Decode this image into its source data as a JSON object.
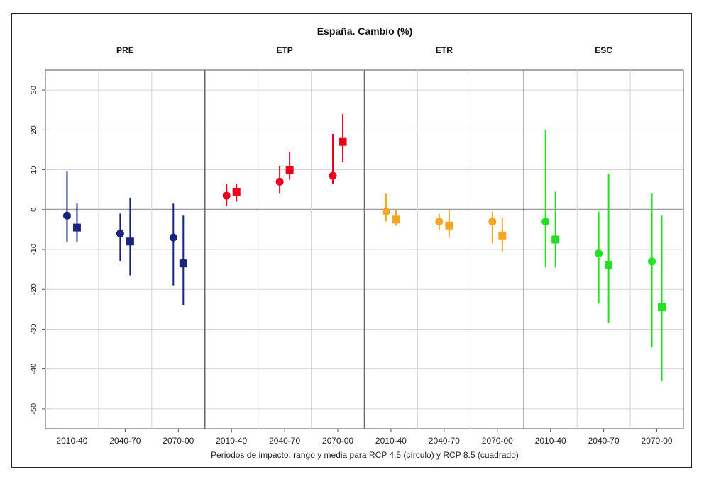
{
  "chart_data": {
    "type": "scatter",
    "title": "España. Cambio (%)",
    "xlabel": "Periodos de impacto: rango y media para RCP 4.5 (círculo) y RCP 8.5 (cuadrado)",
    "ylabel": "",
    "ylim": [
      -55,
      35
    ],
    "yticks": [
      30,
      20,
      10,
      0,
      -10,
      -20,
      -30,
      -40,
      -50
    ],
    "ytick_labels": [
      "30",
      "20",
      "10",
      "0",
      "-10",
      "-20",
      "-30",
      "-40",
      "-50"
    ],
    "grid": true,
    "categories": [
      "2010-40",
      "2040-70",
      "2070-00"
    ],
    "panels": [
      {
        "name": "PRE",
        "color": "#1a237e",
        "series": [
          {
            "marker": "circle",
            "mean": [
              -1.5,
              -6,
              -7
            ],
            "range": [
              [
                -8,
                9.5
              ],
              [
                -13,
                -1
              ],
              [
                -19,
                1.5
              ]
            ]
          },
          {
            "marker": "square",
            "mean": [
              -4.5,
              -8,
              -13.5
            ],
            "range": [
              [
                -8,
                1.5
              ],
              [
                -16.5,
                3
              ],
              [
                -24,
                -1.5
              ]
            ]
          }
        ]
      },
      {
        "name": "ETP",
        "color": "#e8001c",
        "series": [
          {
            "marker": "circle",
            "mean": [
              3.5,
              7,
              8.5
            ],
            "range": [
              [
                1,
                6.5
              ],
              [
                4,
                11
              ],
              [
                6.5,
                19
              ]
            ]
          },
          {
            "marker": "square",
            "mean": [
              4.5,
              10,
              17
            ],
            "range": [
              [
                2,
                6.5
              ],
              [
                7.5,
                14.5
              ],
              [
                12,
                24
              ]
            ]
          }
        ]
      },
      {
        "name": "ETR",
        "color": "#f5a623",
        "series": [
          {
            "marker": "circle",
            "mean": [
              -0.5,
              -3,
              -3
            ],
            "range": [
              [
                -3,
                4
              ],
              [
                -5,
                -1
              ],
              [
                -8.5,
                -0.5
              ]
            ]
          },
          {
            "marker": "square",
            "mean": [
              -2.5,
              -4,
              -6.5
            ],
            "range": [
              [
                -4,
                0
              ],
              [
                -7,
                0
              ],
              [
                -10.5,
                -2
              ]
            ]
          }
        ]
      },
      {
        "name": "ESC",
        "color": "#22e022",
        "series": [
          {
            "marker": "circle",
            "mean": [
              -3,
              -11,
              -13
            ],
            "range": [
              [
                -14.5,
                20
              ],
              [
                -23.5,
                -0.5
              ],
              [
                -34.5,
                4
              ]
            ]
          },
          {
            "marker": "square",
            "mean": [
              -7.5,
              -14,
              -24.5
            ],
            "range": [
              [
                -14.5,
                4.5
              ],
              [
                -28.5,
                9
              ],
              [
                -43,
                -1.5
              ]
            ]
          }
        ]
      }
    ]
  }
}
